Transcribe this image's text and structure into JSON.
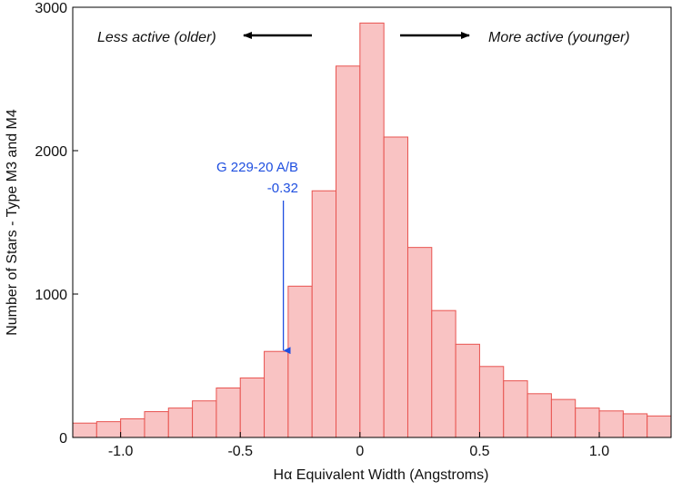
{
  "chart_data": {
    "type": "bar",
    "title": "",
    "xlabel": "Hα Equivalent Width (Angstroms)",
    "ylabel": "Number of Stars - Type M3 and M4",
    "xlim": [
      -1.2,
      1.3
    ],
    "ylim": [
      0,
      3000
    ],
    "bin_width": 0.1,
    "bin_starts": [
      -1.2,
      -1.1,
      -1.0,
      -0.9,
      -0.8,
      -0.7,
      -0.6,
      -0.5,
      -0.4,
      -0.3,
      -0.2,
      -0.1,
      0.0,
      0.1,
      0.2,
      0.3,
      0.4,
      0.5,
      0.6,
      0.7,
      0.8,
      0.9,
      1.0,
      1.1,
      1.2
    ],
    "values": [
      100,
      110,
      130,
      180,
      205,
      255,
      345,
      415,
      600,
      1055,
      1720,
      2590,
      2890,
      2095,
      1325,
      885,
      650,
      495,
      395,
      305,
      265,
      205,
      185,
      165,
      150
    ],
    "x_ticks": [
      -1.0,
      -0.5,
      0,
      0.5,
      1.0
    ],
    "x_tick_labels": [
      "-1.0",
      "-0.5",
      "0",
      "0.5",
      "1.0"
    ],
    "y_ticks": [
      0,
      1000,
      2000,
      3000
    ],
    "y_tick_labels": [
      "0",
      "1000",
      "2000",
      "3000"
    ],
    "grid": false,
    "colors": {
      "bar_fill": "#f9c3c3",
      "bar_stroke": "#e8534f",
      "marker": "#1f4fe0",
      "arrow": "#000000"
    },
    "annotations": {
      "left_text": "Less active (older)",
      "right_text": "More active (younger)",
      "marker_name": "G 229-20 A/B",
      "marker_value_label": "-0.32",
      "marker_x": -0.32,
      "marker_y": 600
    }
  }
}
